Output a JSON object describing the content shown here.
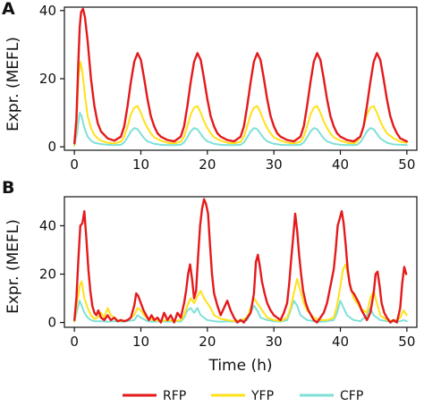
{
  "colors": {
    "RFP": "#e41a1c",
    "YFP": "#ffe11a",
    "CFP": "#7fe0d8",
    "axis": "#111111"
  },
  "chart_data": [
    {
      "type": "line",
      "panel_label": "A",
      "xlabel": "",
      "ylabel": "Expr. (MEFL)",
      "xlim": [
        -1.5,
        51.5
      ],
      "ylim": [
        -1,
        41
      ],
      "xticks": [
        0,
        10,
        20,
        30,
        40,
        50
      ],
      "xtick_labels": [
        "0",
        "10",
        "20",
        "30",
        "40",
        "50"
      ],
      "yticks": [
        0,
        20,
        40
      ],
      "ytick_labels": [
        "0",
        "20",
        "40"
      ],
      "grid": false,
      "series": [
        {
          "name": "RFP",
          "x": [
            0,
            0.3,
            0.6,
            0.8,
            1.0,
            1.3,
            1.6,
            2.0,
            2.5,
            3.0,
            3.5,
            4,
            5,
            6,
            7,
            7.5,
            8,
            8.5,
            9,
            9.5,
            10,
            10.5,
            11,
            11.5,
            12,
            12.5,
            13,
            14,
            15,
            16,
            16.5,
            17,
            17.5,
            18,
            18.5,
            19,
            19.5,
            20,
            20.5,
            21,
            21.5,
            22,
            23,
            24,
            25,
            25.5,
            26,
            26.5,
            27,
            27.5,
            28,
            28.5,
            29,
            29.5,
            30,
            30.5,
            31,
            32,
            33,
            34,
            34.5,
            35,
            35.5,
            36,
            36.5,
            37,
            37.5,
            38,
            38.5,
            39,
            39.5,
            40,
            41,
            42,
            43,
            43.5,
            44,
            44.5,
            45,
            45.5,
            46,
            46.5,
            47,
            47.5,
            48,
            48.5,
            49,
            50
          ],
          "y": [
            1,
            8,
            25,
            35,
            39.5,
            40.5,
            38,
            31,
            20,
            12,
            7,
            4.5,
            2.5,
            1.8,
            3,
            6,
            12,
            19,
            25,
            27.5,
            25.5,
            20,
            14,
            9,
            6,
            4,
            3,
            2,
            1.6,
            3,
            6,
            12,
            19,
            25,
            27.5,
            25.5,
            20,
            14,
            9,
            6,
            4,
            3,
            2,
            1.6,
            3,
            6,
            12,
            19,
            25,
            27.5,
            25.5,
            20,
            14,
            9,
            6,
            4,
            3,
            2,
            1.6,
            3,
            6,
            12,
            19,
            25,
            27.5,
            25.5,
            20,
            14,
            9,
            6,
            4,
            3,
            2,
            1.6,
            3,
            6,
            12,
            19,
            25,
            27.5,
            25.5,
            20,
            14,
            9,
            6,
            4,
            2.5,
            1.6
          ]
        },
        {
          "name": "YFP",
          "x": [
            0,
            0.3,
            0.6,
            0.9,
            1.2,
            1.6,
            2.0,
            2.5,
            3.0,
            3.5,
            4,
            5,
            6,
            7,
            7.5,
            8,
            8.5,
            9,
            9.5,
            10,
            10.5,
            11,
            11.5,
            12,
            13,
            14,
            15,
            16,
            16.5,
            17,
            17.5,
            18,
            18.5,
            19,
            19.5,
            20,
            20.5,
            21,
            22,
            23,
            24,
            25,
            25.5,
            26,
            26.5,
            27,
            27.5,
            28,
            28.5,
            29,
            29.5,
            30,
            31,
            32,
            33,
            34,
            34.5,
            35,
            35.5,
            36,
            36.5,
            37,
            37.5,
            38,
            38.5,
            39,
            40,
            41,
            42,
            42.5,
            43,
            43.5,
            44,
            44.5,
            45,
            45.5,
            46,
            46.5,
            47,
            48,
            49,
            50
          ],
          "y": [
            0.5,
            6,
            20,
            25,
            22,
            15,
            9,
            5.5,
            3.5,
            2.5,
            1.8,
            1.2,
            1,
            1.5,
            3,
            6,
            9.5,
            11.5,
            12,
            10,
            7.5,
            5.5,
            4,
            2.8,
            1.8,
            1.2,
            1,
            1.5,
            3,
            6,
            9.5,
            11.5,
            12,
            10,
            7.5,
            5.5,
            4,
            2.8,
            1.8,
            1.2,
            1,
            1.5,
            3,
            6,
            9.5,
            11.5,
            12,
            10,
            7.5,
            5.5,
            4,
            2.8,
            1.8,
            1.2,
            1,
            1.5,
            3,
            6,
            9.5,
            11.5,
            12,
            10,
            7.5,
            5.5,
            4,
            2.8,
            1.8,
            1.2,
            1,
            1.5,
            3,
            6,
            9.5,
            11.5,
            12,
            10,
            7.5,
            5.5,
            4,
            2.5,
            1.5,
            1.2
          ]
        },
        {
          "name": "CFP",
          "x": [
            0,
            0.4,
            0.8,
            1.1,
            1.5,
            2.0,
            2.5,
            3,
            4,
            5,
            6,
            7,
            7.5,
            8,
            8.5,
            9,
            9.5,
            10,
            10.5,
            11,
            12,
            13,
            14,
            15,
            16,
            16.5,
            17,
            17.5,
            18,
            18.5,
            19,
            19.5,
            20,
            21,
            22,
            23,
            24,
            25,
            25.5,
            26,
            26.5,
            27,
            27.5,
            28,
            28.5,
            29,
            30,
            31,
            32,
            33,
            34,
            34.5,
            35,
            35.5,
            36,
            36.5,
            37,
            37.5,
            38,
            39,
            40,
            41,
            42,
            42.5,
            43,
            43.5,
            44,
            44.5,
            45,
            45.5,
            46,
            47,
            48,
            49,
            50
          ],
          "y": [
            0.3,
            4,
            10,
            9,
            5.5,
            3,
            1.8,
            1.2,
            0.8,
            0.6,
            0.5,
            0.6,
            1.3,
            2.8,
            4.5,
            5.5,
            5.2,
            3.8,
            2.5,
            1.6,
            0.9,
            0.6,
            0.5,
            0.5,
            0.6,
            1.3,
            2.8,
            4.5,
            5.5,
            5.2,
            3.8,
            2.5,
            1.6,
            0.9,
            0.6,
            0.5,
            0.5,
            0.6,
            1.3,
            2.8,
            4.5,
            5.5,
            5.2,
            3.8,
            2.5,
            1.6,
            0.9,
            0.6,
            0.5,
            0.5,
            0.6,
            1.3,
            2.8,
            4.5,
            5.5,
            5.2,
            3.8,
            2.5,
            1.6,
            0.9,
            0.6,
            0.5,
            0.5,
            0.6,
            1.3,
            2.8,
            4.5,
            5.5,
            5.2,
            3.8,
            2.5,
            1.2,
            0.7,
            0.6,
            0.5
          ]
        }
      ]
    },
    {
      "type": "line",
      "panel_label": "B",
      "xlabel": "Time (h)",
      "ylabel": "Expr. (MEFL)",
      "xlim": [
        -1.5,
        51.5
      ],
      "ylim": [
        -2,
        52
      ],
      "xticks": [
        0,
        10,
        20,
        30,
        40,
        50
      ],
      "xtick_labels": [
        "0",
        "10",
        "20",
        "30",
        "40",
        "50"
      ],
      "yticks": [
        0,
        20,
        40
      ],
      "ytick_labels": [
        "0",
        "20",
        "40"
      ],
      "grid": false,
      "series": [
        {
          "name": "RFP",
          "x": [
            0,
            0.3,
            0.6,
            0.9,
            1.2,
            1.5,
            1.8,
            2.1,
            2.4,
            2.7,
            3.0,
            3.3,
            3.6,
            4.0,
            4.5,
            5,
            5.5,
            6,
            6.5,
            7,
            7.5,
            8,
            8.5,
            9,
            9.3,
            9.6,
            10,
            10.4,
            10.8,
            11.2,
            11.6,
            12,
            12.5,
            13,
            13.5,
            14,
            14.5,
            15,
            15.5,
            16,
            16.5,
            16.8,
            17.1,
            17.4,
            17.7,
            18,
            18.3,
            18.6,
            18.9,
            19.2,
            19.5,
            19.8,
            20.1,
            20.4,
            20.7,
            21,
            21.5,
            22,
            22.5,
            23,
            23.5,
            24,
            24.5,
            25,
            25.5,
            26,
            26.5,
            27,
            27.3,
            27.6,
            27.9,
            28.2,
            28.6,
            29,
            29.5,
            30,
            30.5,
            31,
            31.5,
            32,
            32.3,
            32.6,
            32.9,
            33.2,
            33.5,
            33.8,
            34.1,
            34.4,
            34.8,
            35.2,
            35.6,
            36,
            36.5,
            37,
            37.5,
            38,
            38.5,
            39,
            39.3,
            39.6,
            39.9,
            40.2,
            40.5,
            40.8,
            41.1,
            41.4,
            41.7,
            42,
            42.4,
            42.8,
            43.2,
            43.6,
            44,
            44.5,
            45,
            45.3,
            45.6,
            45.9,
            46.2,
            46.6,
            47,
            47.5,
            48,
            48.5,
            49,
            49.3,
            49.6,
            49.9
          ],
          "y": [
            1,
            10,
            26,
            40,
            41,
            46,
            35,
            22,
            13,
            7,
            4,
            3,
            5,
            2,
            1,
            3,
            1,
            2,
            0.5,
            1,
            0.5,
            1,
            2,
            7,
            12,
            11,
            8,
            5,
            3,
            1,
            3,
            1,
            2,
            0,
            4,
            1,
            3,
            0,
            4,
            2,
            8,
            13,
            20,
            24,
            18,
            10,
            13,
            27,
            40,
            47,
            51,
            49,
            45,
            32,
            20,
            12,
            7,
            3,
            6,
            9,
            5,
            2,
            0,
            1,
            0,
            2,
            4,
            12,
            25,
            28,
            23,
            17,
            12,
            8,
            5,
            3,
            2,
            1,
            4,
            8,
            16,
            26,
            35,
            45,
            38,
            28,
            20,
            13,
            8,
            5,
            3,
            1,
            0,
            2,
            4,
            8,
            15,
            22,
            30,
            40,
            43,
            46,
            41,
            32,
            22,
            16,
            13,
            12,
            10,
            8,
            5,
            3,
            1,
            4,
            12,
            20,
            21,
            15,
            8,
            4,
            2,
            0,
            1,
            0,
            6,
            16,
            23,
            20
          ]
        },
        {
          "name": "YFP",
          "x": [
            0,
            0.4,
            0.8,
            1.1,
            1.5,
            2.0,
            2.5,
            3,
            3.5,
            4,
            4.5,
            5,
            5.5,
            6,
            6.5,
            7,
            8,
            9,
            9.5,
            10,
            10.5,
            11,
            12,
            13,
            14,
            15,
            16,
            16.5,
            17,
            17.5,
            18,
            18.5,
            19,
            19.5,
            20,
            20.5,
            21,
            22,
            23,
            24,
            25,
            26,
            26.5,
            27,
            27.5,
            28,
            28.5,
            29,
            30,
            31,
            32,
            32.5,
            33,
            33.5,
            34,
            34.5,
            35,
            36,
            37,
            38,
            39,
            39.5,
            40,
            40.4,
            40.8,
            41.2,
            41.6,
            42,
            43,
            44,
            44.5,
            45,
            45.5,
            46,
            47,
            48,
            49,
            49.5,
            50
          ],
          "y": [
            0.5,
            8,
            15,
            17,
            10,
            6,
            3,
            1.5,
            2,
            4,
            2,
            6,
            3,
            2,
            1,
            0.5,
            1,
            3,
            6,
            5,
            3,
            1.5,
            1,
            0.5,
            1,
            0.5,
            1,
            3,
            7,
            10,
            8,
            11,
            13,
            10,
            8,
            6,
            3,
            1.5,
            1,
            0.5,
            1,
            2,
            6,
            10,
            8,
            6,
            4,
            2,
            1,
            0.5,
            2,
            6,
            12,
            18,
            13,
            8,
            5,
            2,
            1,
            1,
            2,
            7,
            15,
            22,
            24,
            19,
            14,
            10,
            6,
            4,
            10,
            13,
            8,
            3,
            1,
            0.5,
            2,
            5,
            3
          ]
        },
        {
          "name": "CFP",
          "x": [
            0,
            0.4,
            0.8,
            1.1,
            1.5,
            2,
            2.5,
            3,
            4,
            5,
            6,
            7,
            8,
            9,
            9.5,
            10,
            11,
            12,
            13,
            14,
            15,
            16,
            16.5,
            17,
            17.5,
            18,
            18.5,
            19,
            20,
            21,
            22,
            23,
            24,
            25,
            26,
            26.5,
            27,
            27.5,
            28,
            29,
            30,
            31,
            32,
            32.5,
            33,
            33.5,
            34,
            35,
            36,
            37,
            38,
            39,
            39.5,
            40,
            40.5,
            41,
            42,
            43,
            44,
            44.5,
            45,
            46,
            47,
            48,
            49,
            49.5,
            50
          ],
          "y": [
            0.3,
            5,
            9,
            7,
            4,
            2,
            1,
            0.5,
            0.5,
            0.3,
            0.5,
            0.3,
            0.5,
            1,
            3,
            2,
            0.5,
            0.3,
            0.5,
            0.3,
            0.5,
            0.3,
            2,
            5,
            6,
            4,
            6,
            3,
            1,
            0.5,
            0.3,
            0.5,
            0.3,
            0.5,
            1,
            4,
            7,
            5,
            2,
            1,
            0.5,
            0.3,
            1,
            5,
            9,
            7,
            3,
            1,
            0.5,
            0.3,
            0.5,
            1,
            4,
            9,
            6,
            3,
            1,
            0.5,
            3,
            6,
            3,
            1,
            0.5,
            0.3,
            0.5,
            1,
            0.5
          ]
        }
      ]
    }
  ],
  "legend": [
    {
      "label": "RFP",
      "color": "#e41a1c"
    },
    {
      "label": "YFP",
      "color": "#ffe11a"
    },
    {
      "label": "CFP",
      "color": "#7fe0d8"
    }
  ]
}
